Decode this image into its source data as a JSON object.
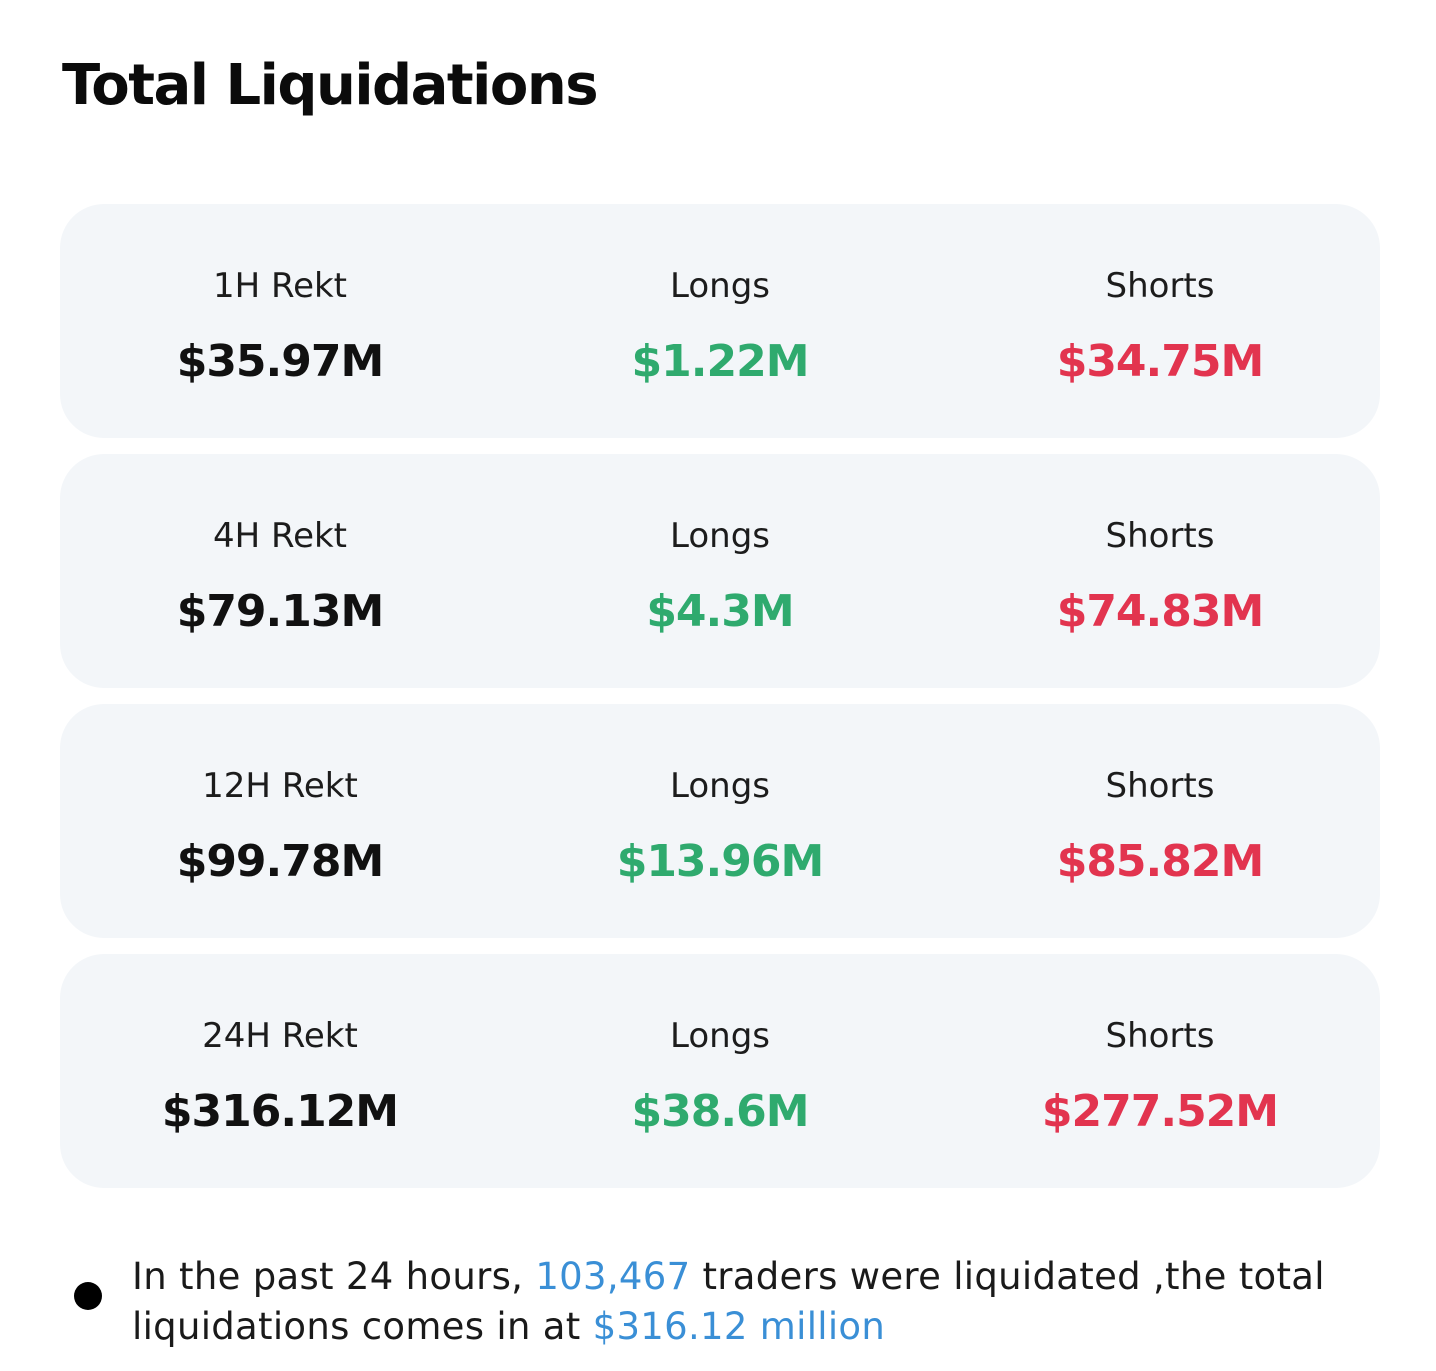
{
  "title": "Total Liquidations",
  "colors": {
    "card_bg": "#f3f6f9",
    "longs": "#2faa6e",
    "shorts": "#e2344f",
    "highlight": "#3a8fd6"
  },
  "cards": [
    {
      "period_label": "1H Rekt",
      "total": "$35.97M",
      "longs_label": "Longs",
      "longs": "$1.22M",
      "shorts_label": "Shorts",
      "shorts": "$34.75M"
    },
    {
      "period_label": "4H Rekt",
      "total": "$79.13M",
      "longs_label": "Longs",
      "longs": "$4.3M",
      "shorts_label": "Shorts",
      "shorts": "$74.83M"
    },
    {
      "period_label": "12H Rekt",
      "total": "$99.78M",
      "longs_label": "Longs",
      "longs": "$13.96M",
      "shorts_label": "Shorts",
      "shorts": "$85.82M"
    },
    {
      "period_label": "24H Rekt",
      "total": "$316.12M",
      "longs_label": "Longs",
      "longs": "$38.6M",
      "shorts_label": "Shorts",
      "shorts": "$277.52M"
    }
  ],
  "summary": {
    "part1": "In the past 24 hours, ",
    "traders_count": "103,467",
    "part2": " traders were liquidated ,the total liquidations comes in at ",
    "total_amount": "$316.12 million"
  }
}
